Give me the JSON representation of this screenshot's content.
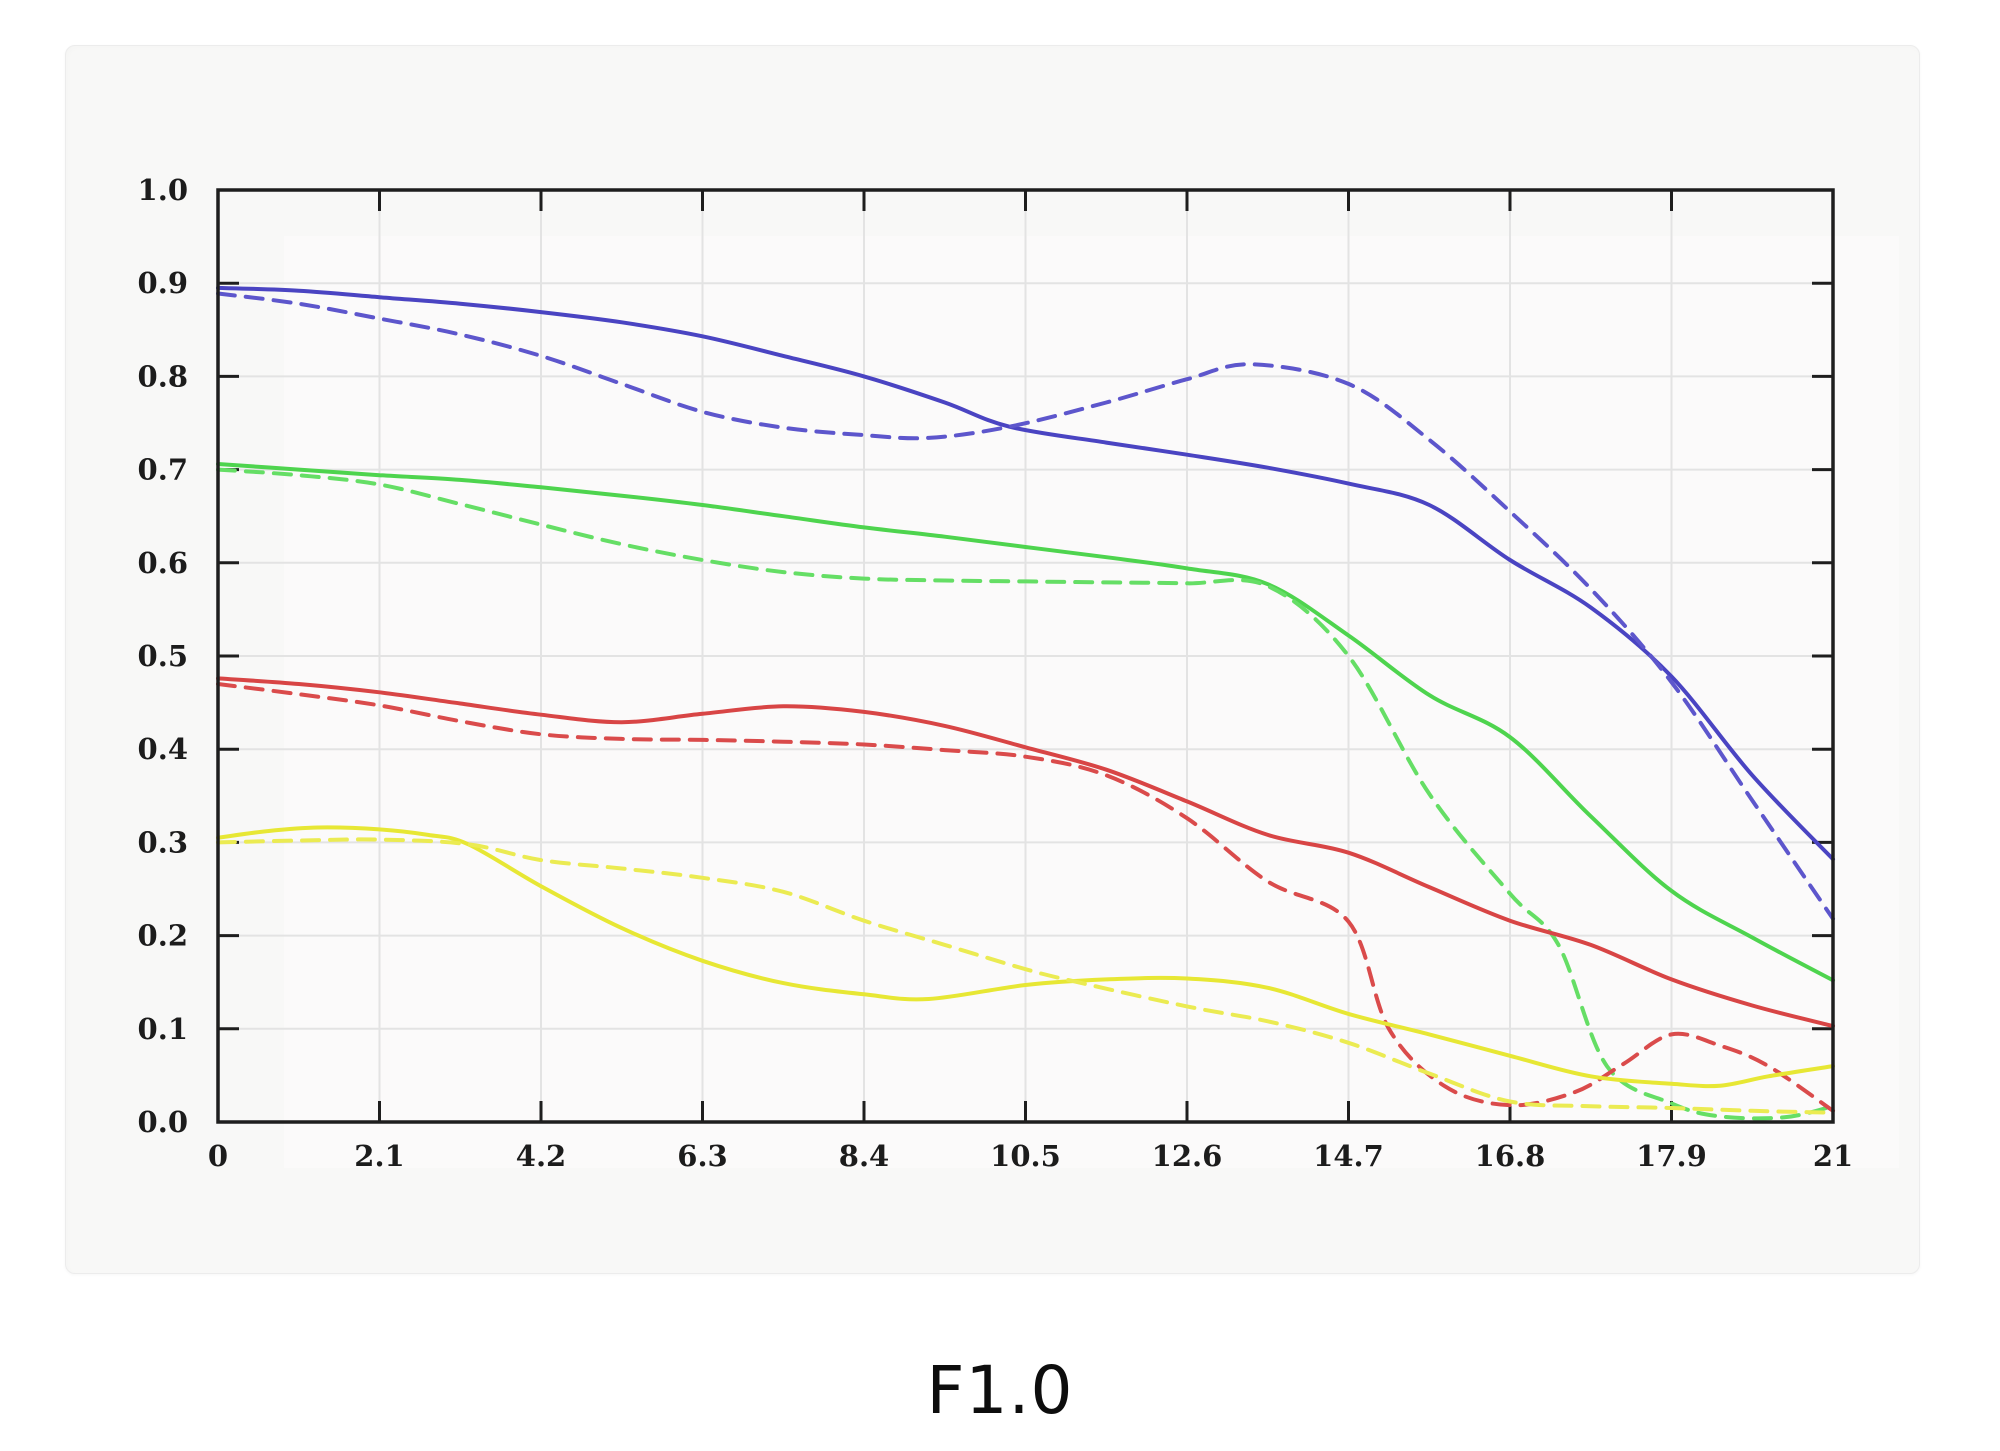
{
  "title": "F1.0",
  "chart_data": {
    "type": "line",
    "title": "F1.0",
    "legend": "none",
    "grid": true,
    "x_axis": {
      "tick_labels": [
        "0",
        "2.1",
        "4.2",
        "6.3",
        "8.4",
        "10.5",
        "12.6",
        "14.7",
        "16.8",
        "17.9",
        "21"
      ],
      "note": "11 evenly spaced ticks; label values are non-uniform after 16.8 (17.9, 21)"
    },
    "y_axis": {
      "min": 0.0,
      "max": 1.0,
      "step": 0.1,
      "tick_labels": [
        "0.0",
        "0.1",
        "0.2",
        "0.3",
        "0.4",
        "0.5",
        "0.6",
        "0.7",
        "0.8",
        "0.9",
        "1.0"
      ]
    },
    "points_format": "[x_tick_position_0_to_10, value]",
    "series": [
      {
        "name": "blue-solid",
        "color": "#4a44c2",
        "style": "solid",
        "points": [
          [
            0,
            0.895
          ],
          [
            0.5,
            0.892
          ],
          [
            1,
            0.885
          ],
          [
            1.5,
            0.878
          ],
          [
            2,
            0.869
          ],
          [
            2.5,
            0.858
          ],
          [
            3,
            0.843
          ],
          [
            3.5,
            0.822
          ],
          [
            4,
            0.8
          ],
          [
            4.5,
            0.772
          ],
          [
            4.9,
            0.746
          ],
          [
            5.5,
            0.729
          ],
          [
            6,
            0.716
          ],
          [
            6.5,
            0.702
          ],
          [
            7,
            0.685
          ],
          [
            7.5,
            0.662
          ],
          [
            8,
            0.603
          ],
          [
            8.5,
            0.552
          ],
          [
            9,
            0.478
          ],
          [
            9.5,
            0.372
          ],
          [
            10,
            0.282
          ]
        ]
      },
      {
        "name": "blue-dashed",
        "color": "#5d56cc",
        "style": "dashed",
        "points": [
          [
            0,
            0.889
          ],
          [
            0.5,
            0.878
          ],
          [
            1,
            0.862
          ],
          [
            1.5,
            0.845
          ],
          [
            2,
            0.822
          ],
          [
            2.5,
            0.792
          ],
          [
            3,
            0.762
          ],
          [
            3.5,
            0.745
          ],
          [
            4,
            0.737
          ],
          [
            4.4,
            0.734
          ],
          [
            4.9,
            0.746
          ],
          [
            5.5,
            0.772
          ],
          [
            6,
            0.797
          ],
          [
            6.4,
            0.813
          ],
          [
            7,
            0.792
          ],
          [
            7.5,
            0.732
          ],
          [
            8,
            0.655
          ],
          [
            8.5,
            0.572
          ],
          [
            9,
            0.472
          ],
          [
            9.5,
            0.345
          ],
          [
            10,
            0.218
          ]
        ]
      },
      {
        "name": "green-solid",
        "color": "#4ed44e",
        "style": "solid",
        "points": [
          [
            0,
            0.706
          ],
          [
            0.5,
            0.7
          ],
          [
            1,
            0.694
          ],
          [
            1.5,
            0.689
          ],
          [
            2,
            0.681
          ],
          [
            2.5,
            0.672
          ],
          [
            3,
            0.662
          ],
          [
            3.5,
            0.65
          ],
          [
            4,
            0.638
          ],
          [
            4.5,
            0.628
          ],
          [
            5,
            0.617
          ],
          [
            5.5,
            0.606
          ],
          [
            6,
            0.594
          ],
          [
            6.5,
            0.577
          ],
          [
            7,
            0.522
          ],
          [
            7.5,
            0.458
          ],
          [
            8,
            0.413
          ],
          [
            8.5,
            0.328
          ],
          [
            9,
            0.248
          ],
          [
            9.5,
            0.198
          ],
          [
            10,
            0.152
          ]
        ]
      },
      {
        "name": "green-dashed",
        "color": "#65de65",
        "style": "dashed",
        "points": [
          [
            0,
            0.7
          ],
          [
            0.5,
            0.694
          ],
          [
            1,
            0.684
          ],
          [
            1.5,
            0.663
          ],
          [
            2,
            0.641
          ],
          [
            2.5,
            0.62
          ],
          [
            3,
            0.603
          ],
          [
            3.5,
            0.59
          ],
          [
            4,
            0.583
          ],
          [
            4.5,
            0.581
          ],
          [
            5,
            0.58
          ],
          [
            5.5,
            0.579
          ],
          [
            6,
            0.578
          ],
          [
            6.5,
            0.575
          ],
          [
            7,
            0.5
          ],
          [
            7.5,
            0.352
          ],
          [
            8,
            0.245
          ],
          [
            8.3,
            0.19
          ],
          [
            8.6,
            0.06
          ],
          [
            9,
            0.02
          ],
          [
            9.3,
            0.006
          ],
          [
            9.7,
            0.005
          ],
          [
            10,
            0.017
          ]
        ]
      },
      {
        "name": "red-solid",
        "color": "#d84545",
        "style": "solid",
        "points": [
          [
            0,
            0.476
          ],
          [
            0.5,
            0.47
          ],
          [
            1,
            0.461
          ],
          [
            1.5,
            0.449
          ],
          [
            2,
            0.437
          ],
          [
            2.5,
            0.429
          ],
          [
            3,
            0.438
          ],
          [
            3.5,
            0.446
          ],
          [
            4,
            0.44
          ],
          [
            4.5,
            0.425
          ],
          [
            5,
            0.402
          ],
          [
            5.5,
            0.378
          ],
          [
            6,
            0.344
          ],
          [
            6.5,
            0.308
          ],
          [
            7,
            0.289
          ],
          [
            7.5,
            0.252
          ],
          [
            8,
            0.216
          ],
          [
            8.5,
            0.19
          ],
          [
            9,
            0.153
          ],
          [
            9.5,
            0.125
          ],
          [
            10,
            0.103
          ]
        ]
      },
      {
        "name": "red-dashed",
        "color": "#da4b4b",
        "style": "dashed",
        "points": [
          [
            0,
            0.47
          ],
          [
            0.5,
            0.459
          ],
          [
            1,
            0.447
          ],
          [
            1.5,
            0.43
          ],
          [
            2,
            0.416
          ],
          [
            2.5,
            0.411
          ],
          [
            3,
            0.41
          ],
          [
            3.5,
            0.408
          ],
          [
            4,
            0.405
          ],
          [
            4.5,
            0.399
          ],
          [
            5,
            0.392
          ],
          [
            5.5,
            0.372
          ],
          [
            6,
            0.326
          ],
          [
            6.5,
            0.258
          ],
          [
            7,
            0.215
          ],
          [
            7.25,
            0.1
          ],
          [
            7.6,
            0.038
          ],
          [
            8,
            0.018
          ],
          [
            8.4,
            0.032
          ],
          [
            8.7,
            0.062
          ],
          [
            9,
            0.094
          ],
          [
            9.3,
            0.082
          ],
          [
            9.6,
            0.06
          ],
          [
            10,
            0.012
          ]
        ]
      },
      {
        "name": "yellow-solid",
        "color": "#e7e734",
        "style": "solid",
        "points": [
          [
            0,
            0.305
          ],
          [
            0.3,
            0.312
          ],
          [
            0.62,
            0.316
          ],
          [
            1,
            0.314
          ],
          [
            1.3,
            0.308
          ],
          [
            1.55,
            0.298
          ],
          [
            2,
            0.253
          ],
          [
            2.5,
            0.208
          ],
          [
            3,
            0.173
          ],
          [
            3.5,
            0.149
          ],
          [
            4,
            0.137
          ],
          [
            4.4,
            0.132
          ],
          [
            5,
            0.147
          ],
          [
            5.5,
            0.153
          ],
          [
            6,
            0.154
          ],
          [
            6.5,
            0.144
          ],
          [
            7,
            0.116
          ],
          [
            7.5,
            0.094
          ],
          [
            8,
            0.071
          ],
          [
            8.5,
            0.049
          ],
          [
            9,
            0.041
          ],
          [
            9.3,
            0.039
          ],
          [
            9.6,
            0.049
          ],
          [
            10,
            0.06
          ]
        ]
      },
      {
        "name": "yellow-dashed",
        "color": "#ebeb52",
        "style": "dashed",
        "points": [
          [
            0,
            0.3
          ],
          [
            0.5,
            0.302
          ],
          [
            1,
            0.303
          ],
          [
            1.55,
            0.298
          ],
          [
            2,
            0.281
          ],
          [
            2.5,
            0.272
          ],
          [
            3,
            0.262
          ],
          [
            3.5,
            0.247
          ],
          [
            4,
            0.216
          ],
          [
            4.5,
            0.19
          ],
          [
            5,
            0.164
          ],
          [
            5.3,
            0.151
          ],
          [
            6,
            0.124
          ],
          [
            6.5,
            0.108
          ],
          [
            7,
            0.085
          ],
          [
            7.5,
            0.052
          ],
          [
            8,
            0.022
          ],
          [
            8.5,
            0.017
          ],
          [
            9,
            0.015
          ],
          [
            9.5,
            0.012
          ],
          [
            10,
            0.01
          ]
        ]
      }
    ],
    "style_colors": {
      "frame": "#1e1e1e",
      "grid": "#e3e3e3",
      "tick_label": "#1c1c1c",
      "plot_background": "#fbfafa",
      "card_background": "#f8f8f7",
      "page_background": "#ffffff"
    }
  }
}
